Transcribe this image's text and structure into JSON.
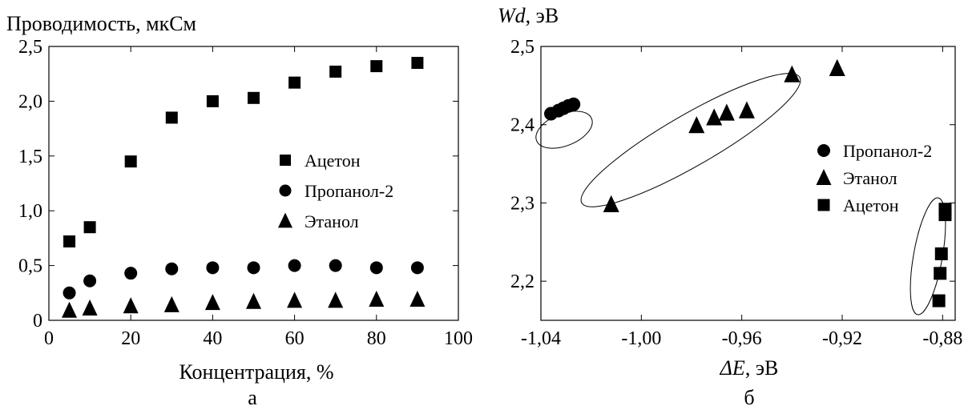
{
  "chart_data": [
    {
      "type": "scatter",
      "panel_label": "а",
      "title": "",
      "xlabel": "Концентрация, %",
      "ylabel": "Проводимость, мкСм",
      "xlim": [
        0,
        100
      ],
      "ylim": [
        0,
        2.5
      ],
      "xticks": [
        "0",
        "20",
        "40",
        "60",
        "80",
        "100"
      ],
      "yticks": [
        "0",
        "0,5",
        "1,0",
        "1,5",
        "2,0",
        "2,5"
      ],
      "grid": false,
      "legend_position": "right-center",
      "series": [
        {
          "name": "Ацетон",
          "marker": "square",
          "x": [
            5,
            10,
            20,
            30,
            40,
            50,
            60,
            70,
            80,
            90
          ],
          "y": [
            0.72,
            0.85,
            1.45,
            1.85,
            2.0,
            2.03,
            2.17,
            2.27,
            2.32,
            2.35
          ]
        },
        {
          "name": "Пропанол-2",
          "marker": "circle",
          "x": [
            5,
            10,
            20,
            30,
            40,
            50,
            60,
            70,
            80,
            90
          ],
          "y": [
            0.25,
            0.36,
            0.43,
            0.47,
            0.48,
            0.48,
            0.5,
            0.5,
            0.48,
            0.48
          ]
        },
        {
          "name": "Этанол",
          "marker": "triangle",
          "x": [
            5,
            10,
            20,
            30,
            40,
            50,
            60,
            70,
            80,
            90
          ],
          "y": [
            0.09,
            0.11,
            0.13,
            0.14,
            0.16,
            0.17,
            0.18,
            0.18,
            0.19,
            0.19
          ]
        }
      ]
    },
    {
      "type": "scatter",
      "panel_label": "б",
      "title": "",
      "xlabel_italic": "ΔE",
      "xlabel_unit": ", эВ",
      "ylabel_italic": "Wd",
      "ylabel_unit": ", эВ",
      "xlim": [
        -1.04,
        -0.875
      ],
      "ylim": [
        2.15,
        2.5
      ],
      "xticks": [
        "-1,04",
        "-1,00",
        "-0,96",
        "-0,92",
        "-0,88"
      ],
      "yticks": [
        "2,2",
        "2,3",
        "2,4",
        "2,5"
      ],
      "grid": false,
      "legend_position": "right-center",
      "series": [
        {
          "name": "Пропанол-2",
          "marker": "circle",
          "x": [
            -1.036,
            -1.033,
            -1.031,
            -1.029,
            -1.027
          ],
          "y": [
            2.414,
            2.418,
            2.421,
            2.424,
            2.426
          ]
        },
        {
          "name": "Этанол",
          "marker": "triangle",
          "x": [
            -1.012,
            -0.978,
            -0.971,
            -0.966,
            -0.958,
            -0.94,
            -0.922
          ],
          "y": [
            2.298,
            2.399,
            2.409,
            2.415,
            2.418,
            2.464,
            2.472
          ]
        },
        {
          "name": "Ацетон",
          "marker": "square",
          "x": [
            -0.879,
            -0.879,
            -0.8805,
            -0.881,
            -0.8815
          ],
          "y": [
            2.292,
            2.285,
            2.235,
            2.21,
            2.175
          ]
        }
      ],
      "annotations": [
        "ellipse-group-propanol",
        "ellipse-group-ethanol",
        "ellipse-group-acetone"
      ]
    }
  ]
}
